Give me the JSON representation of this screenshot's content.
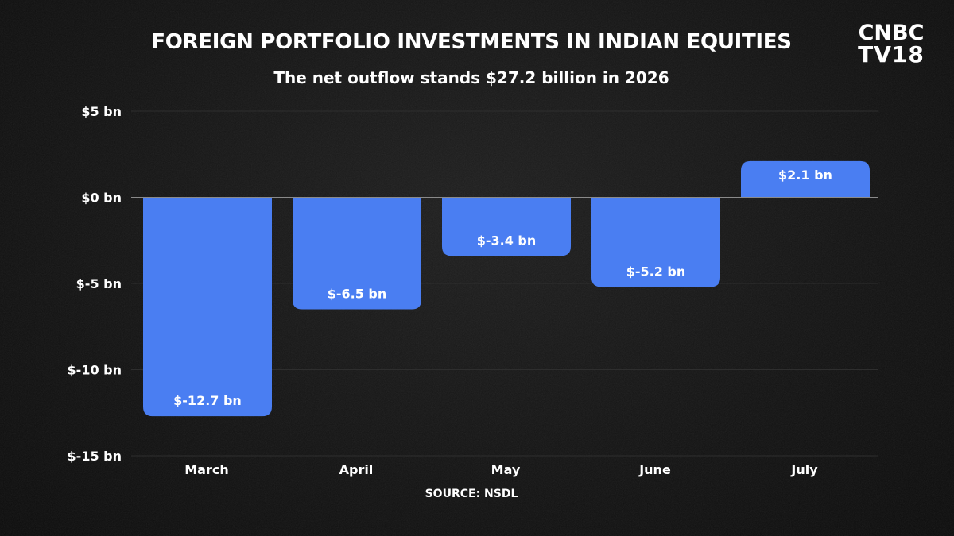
{
  "header": {
    "title": "FOREIGN PORTFOLIO INVESTMENTS IN INDIAN EQUITIES",
    "subtitle": "The net outflow stands $27.2 billion in 2026"
  },
  "logo": {
    "line1": "CNBC",
    "line2": "TV18"
  },
  "footer": {
    "source": "SOURCE: NSDL"
  },
  "colors": {
    "bar": "#4a7ef2",
    "background": "#141414",
    "text": "#ffffff",
    "zero_line": "#8a8a8a",
    "grid": "#2e2e2e"
  },
  "chart_data": {
    "type": "bar",
    "title": "FOREIGN PORTFOLIO INVESTMENTS IN INDIAN EQUITIES",
    "subtitle": "The net outflow stands $27.2 billion in 2026",
    "categories": [
      "March",
      "April",
      "May",
      "June",
      "July"
    ],
    "values": [
      -12.7,
      -6.5,
      -3.4,
      -5.2,
      2.1
    ],
    "data_labels": [
      "$-12.7 bn",
      "$-6.5 bn",
      "$-3.4 bn",
      "$-5.2 bn",
      "$2.1 bn"
    ],
    "y_ticks": [
      5,
      0,
      -5,
      -10,
      -15
    ],
    "y_tick_labels": [
      "$5 bn",
      "$0 bn",
      "$-5 bn",
      "$-10 bn",
      "$-15 bn"
    ],
    "ylim": [
      -15,
      5
    ],
    "xlabel": "",
    "ylabel": "",
    "grid": true,
    "legend": "none"
  }
}
